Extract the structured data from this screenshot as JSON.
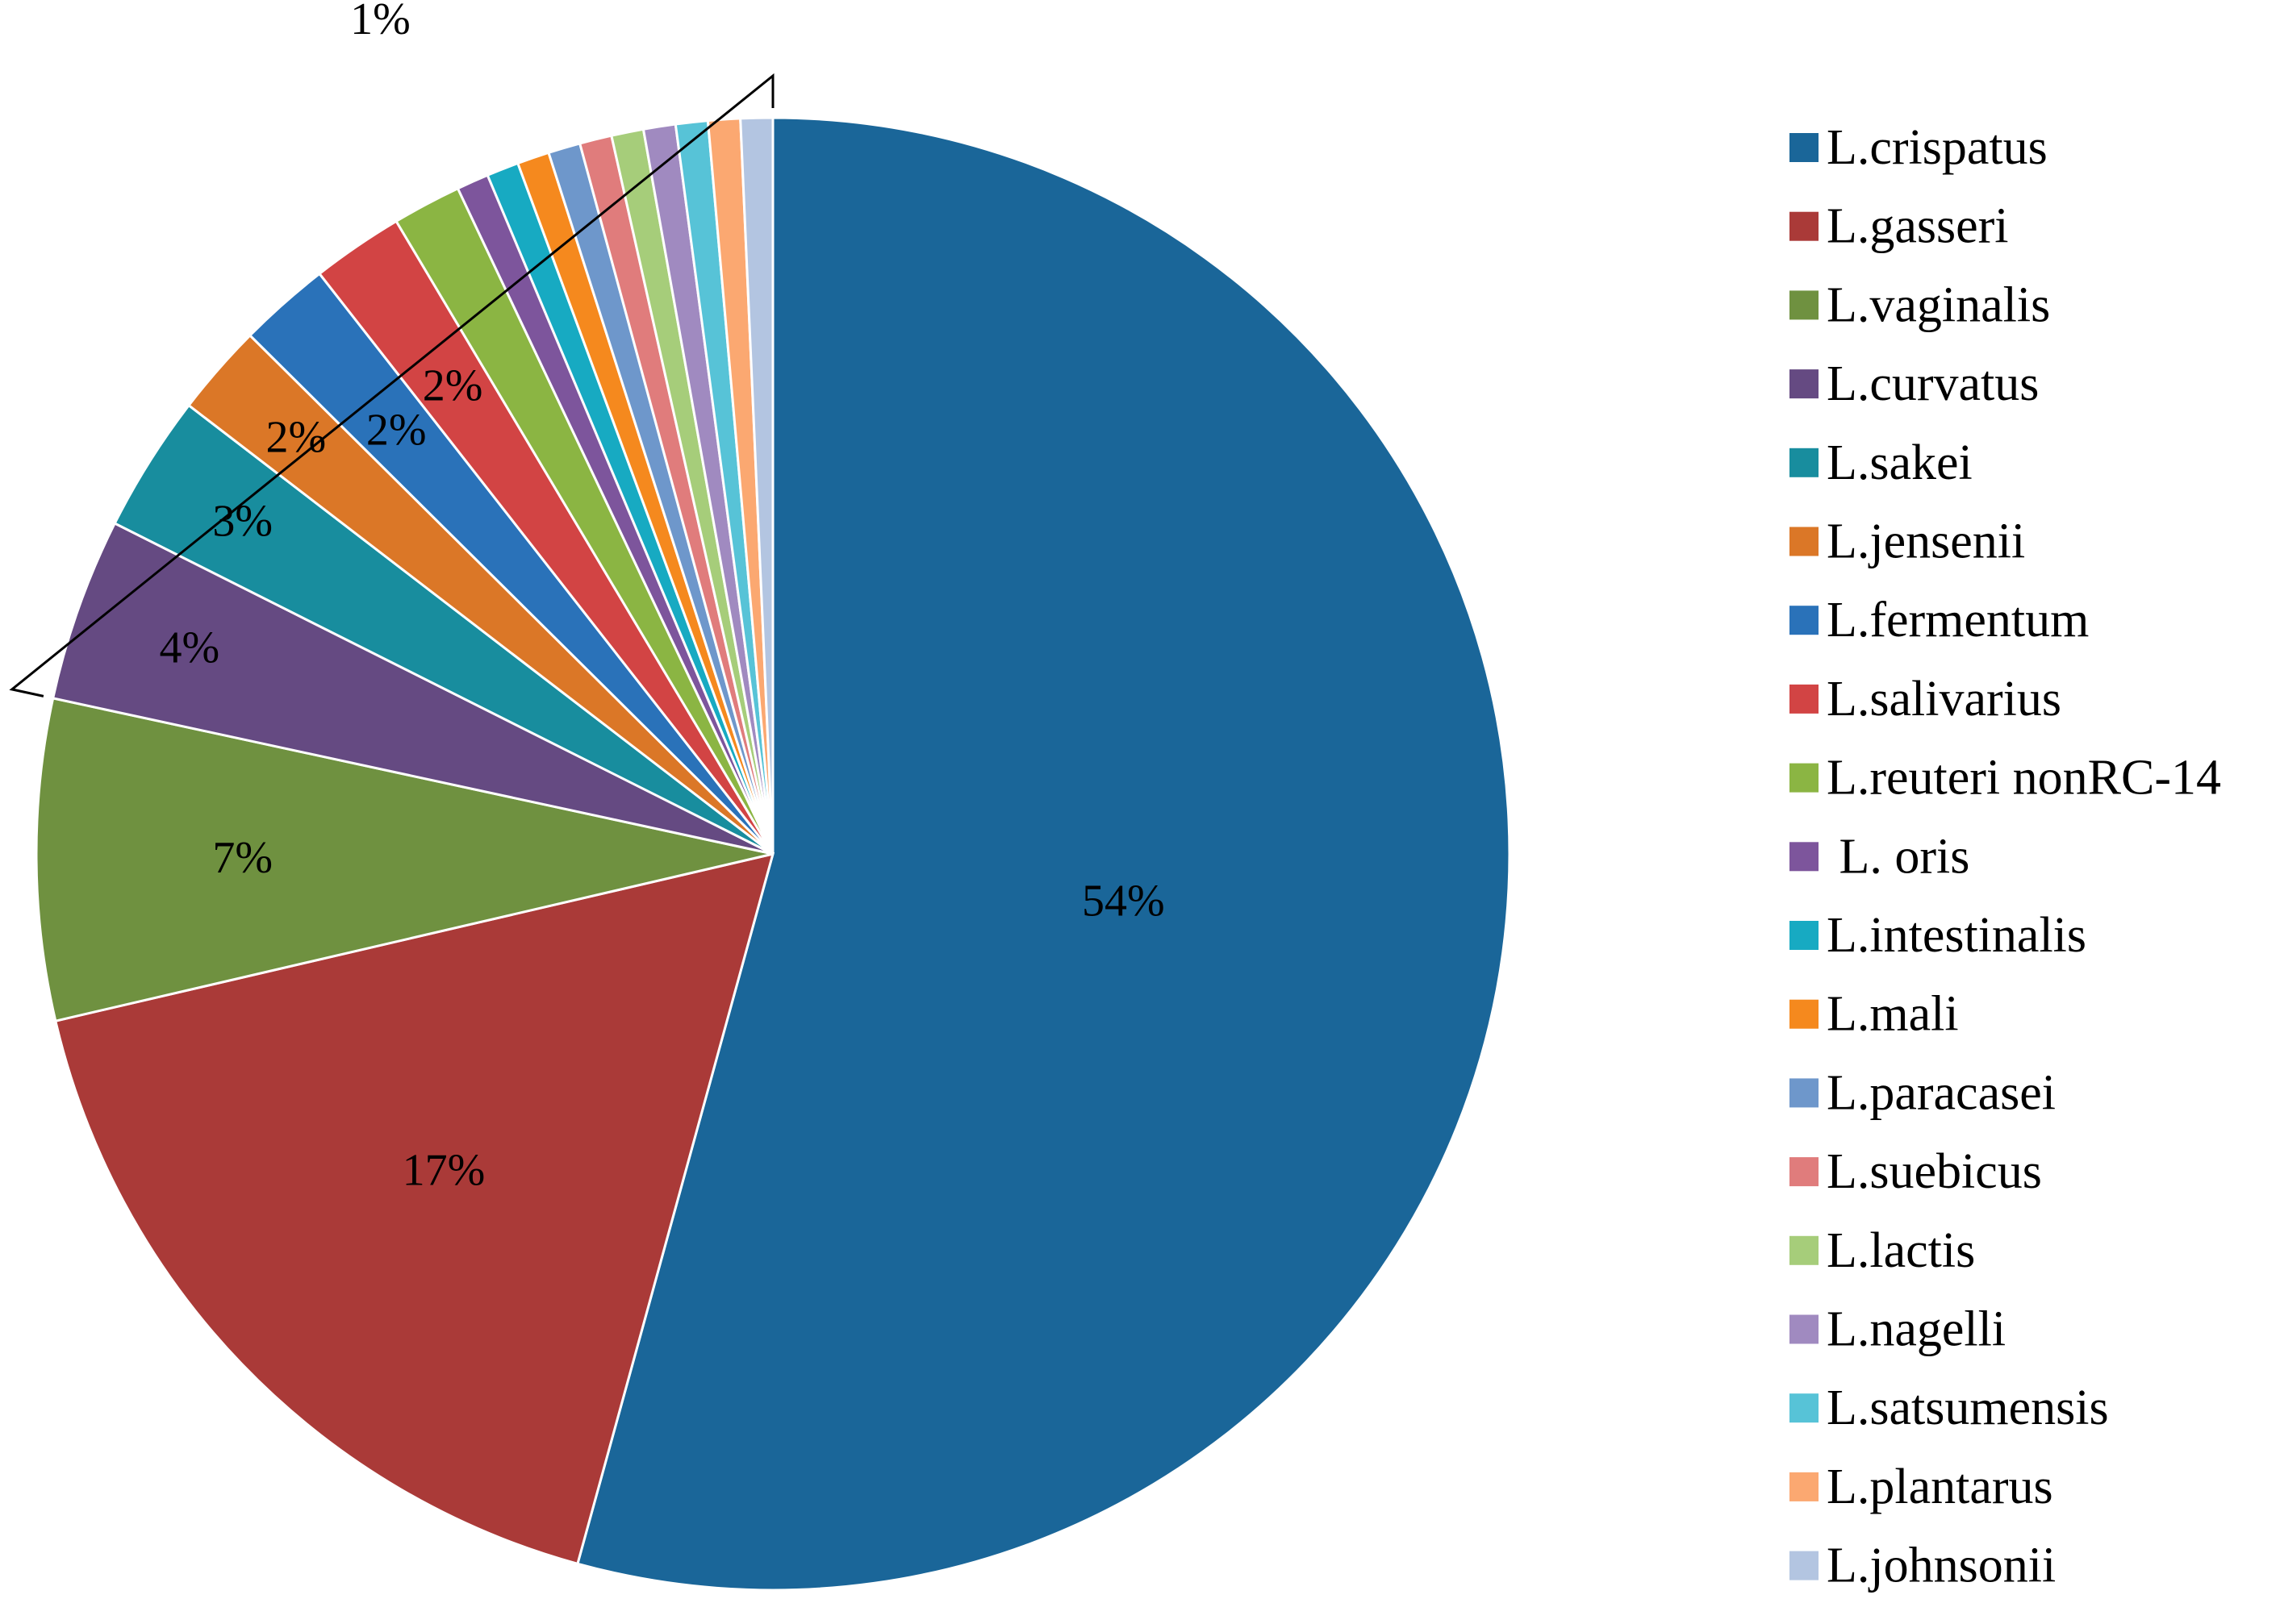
{
  "chart_data": {
    "type": "pie",
    "title": "",
    "start_angle_deg": 0,
    "direction": "clockwise",
    "slices": [
      {
        "name": "L.crispatus",
        "value": 54,
        "label": "54%",
        "color": "#1a6699"
      },
      {
        "name": "L.gasseri",
        "value": 17,
        "label": "17%",
        "color": "#aa3a38"
      },
      {
        "name": "L.vaginalis",
        "value": 7,
        "label": "7%",
        "color": "#6f9140"
      },
      {
        "name": "L.curvatus",
        "value": 4,
        "label": "4%",
        "color": "#654a82"
      },
      {
        "name": "L.sakei",
        "value": 3,
        "label": "3%",
        "color": "#188d9e"
      },
      {
        "name": "L.jensenii",
        "value": 2,
        "label": "2%",
        "color": "#db7727"
      },
      {
        "name": "L.fermentum",
        "value": 2,
        "label": "2%",
        "color": "#2a72b9"
      },
      {
        "name": "L.salivarius",
        "value": 2,
        "label": "2%",
        "color": "#d24444"
      },
      {
        "name": "L.reuteri nonRC-14",
        "value": 1.5,
        "label": "",
        "color": "#8bb543"
      },
      {
        "name": " L. oris",
        "value": 0.7,
        "label": "",
        "color": "#7d559c"
      },
      {
        "name": "L.intestinalis",
        "value": 0.7,
        "label": "",
        "color": "#17aac2"
      },
      {
        "name": "L.mali",
        "value": 0.7,
        "label": "",
        "color": "#f5891e"
      },
      {
        "name": "L.paracasei",
        "value": 0.7,
        "label": "",
        "color": "#6e97cb"
      },
      {
        "name": "L.suebicus",
        "value": 0.7,
        "label": "",
        "color": "#e07c7c"
      },
      {
        "name": "L.lactis",
        "value": 0.7,
        "label": "",
        "color": "#a6cd7a"
      },
      {
        "name": "L.nagelli",
        "value": 0.7,
        "label": "",
        "color": "#a08ac0"
      },
      {
        "name": "L.satsumensis",
        "value": 0.7,
        "label": "",
        "color": "#57c3d7"
      },
      {
        "name": "L.plantarus",
        "value": 0.7,
        "label": "",
        "color": "#fba871"
      },
      {
        "name": "L.johnsonii",
        "value": 0.7,
        "label": "",
        "color": "#b3c5e1"
      }
    ],
    "bracket": {
      "label": "1%",
      "spans_slices": [
        "L.curvatus",
        "L.johnsonii"
      ]
    },
    "legend_placement": "right"
  }
}
